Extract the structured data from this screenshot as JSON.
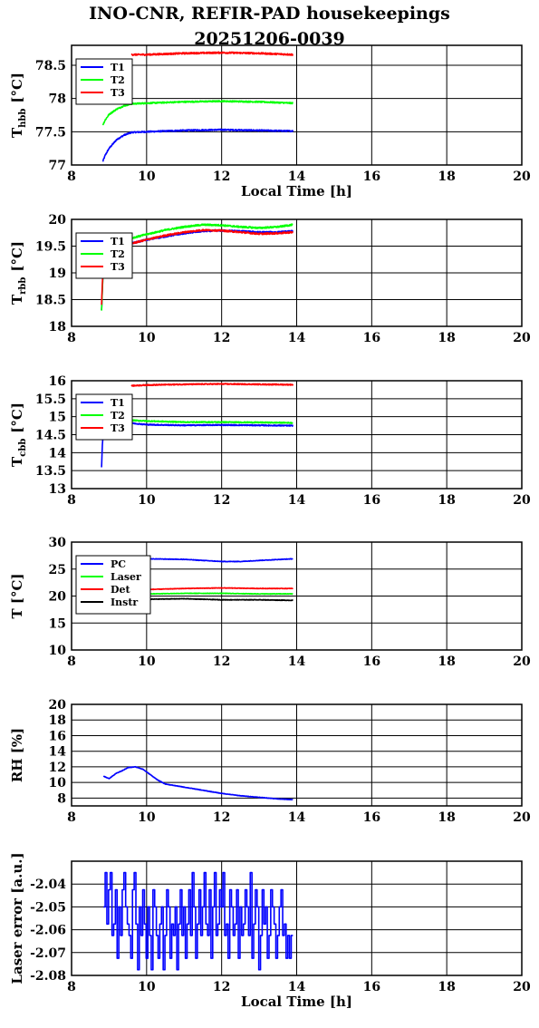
{
  "title_line1": "INO-CNR, REFIR-PAD housekeepings",
  "title_line2": "20251206-0039",
  "colors": {
    "blue": "#0000ff",
    "green": "#00ff00",
    "red": "#ff0000",
    "black": "#000000"
  },
  "chart_data": [
    {
      "type": "line",
      "ylabel": "T",
      "ylabel_sub": "hbb",
      "ylabel_unit": "[°C]",
      "xlabel": "Local Time [h]",
      "xlim": [
        8,
        20
      ],
      "ylim": [
        77,
        78.8
      ],
      "xticks": [
        "8",
        "10",
        "12",
        "14",
        "16",
        "18",
        "20"
      ],
      "yticks": [
        "77",
        "77.5",
        "78",
        "78.5"
      ],
      "ytick_values": [
        77,
        77.5,
        78,
        78.5
      ],
      "grid": true,
      "legend": "top-left",
      "series": [
        {
          "name": "T1",
          "color": "#0000ff",
          "noise": 0.01,
          "x": [
            8.83,
            8.9,
            9.0,
            9.2,
            9.4,
            9.6,
            10.0,
            11.0,
            12.0,
            13.0,
            13.9
          ],
          "y": [
            77.05,
            77.15,
            77.25,
            77.38,
            77.45,
            77.49,
            77.5,
            77.52,
            77.53,
            77.52,
            77.51
          ]
        },
        {
          "name": "T2",
          "color": "#00ff00",
          "noise": 0.01,
          "x": [
            8.83,
            8.9,
            9.0,
            9.2,
            9.4,
            9.6,
            10.0,
            11.0,
            12.0,
            13.0,
            13.9
          ],
          "y": [
            77.6,
            77.68,
            77.76,
            77.84,
            77.89,
            77.92,
            77.93,
            77.95,
            77.96,
            77.95,
            77.93
          ]
        },
        {
          "name": "T3",
          "color": "#ff0000",
          "noise": 0.012,
          "x": [
            9.6,
            10.0,
            11.0,
            12.0,
            13.0,
            13.9
          ],
          "y": [
            78.66,
            78.66,
            78.68,
            78.69,
            78.68,
            78.66
          ]
        }
      ]
    },
    {
      "type": "line",
      "ylabel": "T",
      "ylabel_sub": "rbb",
      "ylabel_unit": "[°C]",
      "xlabel": "",
      "xlim": [
        8,
        20
      ],
      "ylim": [
        18,
        20
      ],
      "xticks": [
        "8",
        "10",
        "12",
        "14",
        "16",
        "18",
        "20"
      ],
      "yticks": [
        "18",
        "18.5",
        "19",
        "19.5",
        "20"
      ],
      "ytick_values": [
        18,
        18.5,
        19,
        19.5,
        20
      ],
      "grid": true,
      "legend": "top-left",
      "series": [
        {
          "name": "T1",
          "color": "#0000ff",
          "noise": 0.015,
          "x": [
            8.8,
            8.82,
            8.84,
            9.6,
            10.0,
            10.5,
            11.0,
            11.5,
            12.0,
            12.5,
            13.0,
            13.5,
            13.9
          ],
          "y": [
            18.3,
            18.7,
            19.0,
            19.55,
            19.62,
            19.68,
            19.74,
            19.78,
            19.79,
            19.78,
            19.76,
            19.76,
            19.78
          ]
        },
        {
          "name": "T2",
          "color": "#00ff00",
          "noise": 0.015,
          "x": [
            8.8,
            8.82,
            8.84,
            9.6,
            10.0,
            10.5,
            11.0,
            11.5,
            12.0,
            12.5,
            13.0,
            13.5,
            13.9
          ],
          "y": [
            18.28,
            18.68,
            19.0,
            19.65,
            19.72,
            19.8,
            19.86,
            19.9,
            19.89,
            19.86,
            19.84,
            19.86,
            19.9
          ]
        },
        {
          "name": "T3",
          "color": "#ff0000",
          "noise": 0.015,
          "x": [
            8.8,
            8.82,
            8.84,
            9.6,
            10.0,
            10.5,
            11.0,
            11.5,
            12.0,
            12.5,
            13.0,
            13.5,
            13.9
          ],
          "y": [
            18.4,
            18.8,
            19.02,
            19.55,
            19.62,
            19.7,
            19.76,
            19.8,
            19.79,
            19.76,
            19.73,
            19.74,
            19.76
          ]
        }
      ]
    },
    {
      "type": "line",
      "ylabel": "T",
      "ylabel_sub": "cbb",
      "ylabel_unit": "[°C]",
      "xlabel": "",
      "xlim": [
        8,
        20
      ],
      "ylim": [
        13,
        16
      ],
      "xticks": [
        "8",
        "10",
        "12",
        "14",
        "16",
        "18",
        "20"
      ],
      "yticks": [
        "13",
        "13.5",
        "14",
        "14.5",
        "15",
        "15.5",
        "16"
      ],
      "ytick_values": [
        13,
        13.5,
        14,
        14.5,
        15,
        15.5,
        16
      ],
      "grid": true,
      "legend": "top-left",
      "series": [
        {
          "name": "T1",
          "color": "#0000ff",
          "noise": 0.015,
          "x": [
            8.8,
            8.82,
            8.85,
            9.6,
            10.0,
            11.0,
            12.0,
            13.0,
            13.9
          ],
          "y": [
            13.6,
            14.2,
            14.6,
            14.82,
            14.78,
            14.76,
            14.77,
            14.76,
            14.75
          ]
        },
        {
          "name": "T2",
          "color": "#00ff00",
          "noise": 0.015,
          "x": [
            9.6,
            10.0,
            11.0,
            12.0,
            13.0,
            13.9
          ],
          "y": [
            14.9,
            14.88,
            14.85,
            14.85,
            14.84,
            14.83
          ]
        },
        {
          "name": "T3",
          "color": "#ff0000",
          "noise": 0.015,
          "x": [
            9.6,
            10.0,
            11.0,
            12.0,
            13.0,
            13.9
          ],
          "y": [
            15.86,
            15.88,
            15.9,
            15.91,
            15.9,
            15.89
          ]
        }
      ]
    },
    {
      "type": "line",
      "ylabel": "T [°C]",
      "ylabel_sub": "",
      "ylabel_unit": "",
      "xlabel": "",
      "xlim": [
        8,
        20
      ],
      "ylim": [
        10,
        30
      ],
      "xticks": [
        "8",
        "10",
        "12",
        "14",
        "16",
        "18",
        "20"
      ],
      "yticks": [
        "10",
        "15",
        "20",
        "25",
        "30"
      ],
      "ytick_values": [
        10,
        15,
        20,
        25,
        30
      ],
      "grid": true,
      "legend": "top-left",
      "series": [
        {
          "name": "PC",
          "color": "#0000ff",
          "noise": 0.05,
          "x": [
            9.5,
            10.0,
            11.0,
            12.0,
            12.5,
            13.0,
            13.9
          ],
          "y": [
            26.8,
            26.9,
            26.8,
            26.4,
            26.4,
            26.6,
            26.9
          ]
        },
        {
          "name": "Laser",
          "color": "#00ff00",
          "noise": 0.05,
          "x": [
            9.5,
            10.0,
            11.0,
            12.0,
            13.0,
            13.9
          ],
          "y": [
            20.4,
            20.4,
            20.5,
            20.5,
            20.4,
            20.4
          ]
        },
        {
          "name": "Det",
          "color": "#ff0000",
          "noise": 0.05,
          "x": [
            9.5,
            10.0,
            11.0,
            12.0,
            13.0,
            13.9
          ],
          "y": [
            21.2,
            21.2,
            21.4,
            21.5,
            21.4,
            21.4
          ]
        },
        {
          "name": "Instr",
          "color": "#000000",
          "noise": 0.05,
          "x": [
            9.5,
            10.0,
            11.0,
            12.0,
            13.0,
            13.9
          ],
          "y": [
            19.3,
            19.4,
            19.5,
            19.3,
            19.3,
            19.2
          ]
        }
      ]
    },
    {
      "type": "line",
      "ylabel": "RH [%]",
      "ylabel_sub": "",
      "ylabel_unit": "",
      "xlabel": "",
      "xlim": [
        8,
        20
      ],
      "ylim": [
        7,
        20
      ],
      "xticks": [
        "8",
        "10",
        "12",
        "14",
        "16",
        "18",
        "20"
      ],
      "yticks": [
        "8",
        "10",
        "12",
        "14",
        "16",
        "18",
        "20"
      ],
      "ytick_values": [
        8,
        10,
        12,
        14,
        16,
        18,
        20
      ],
      "grid": true,
      "legend": "none",
      "series": [
        {
          "color": "#0000ff",
          "noise": 0.03,
          "x": [
            8.85,
            9.0,
            9.2,
            9.35,
            9.5,
            9.7,
            9.9,
            10.1,
            10.3,
            10.5,
            11.0,
            11.5,
            12.0,
            12.5,
            13.0,
            13.5,
            13.9
          ],
          "y": [
            10.8,
            10.5,
            11.2,
            11.5,
            11.9,
            12.0,
            11.7,
            11.0,
            10.3,
            9.8,
            9.4,
            9.0,
            8.6,
            8.3,
            8.1,
            7.9,
            7.8
          ]
        }
      ]
    },
    {
      "type": "line",
      "ylabel": "Laser error [a.u.]",
      "ylabel_sub": "",
      "ylabel_unit": "",
      "xlabel": "Local Time [h]",
      "xlim": [
        8,
        20
      ],
      "ylim": [
        -2.08,
        -2.03
      ],
      "xticks": [
        "8",
        "10",
        "12",
        "14",
        "16",
        "18",
        "20"
      ],
      "yticks": [
        "-2.08",
        "-2.07",
        "-2.06",
        "-2.05",
        "-2.04"
      ],
      "ytick_values": [
        -2.08,
        -2.07,
        -2.06,
        -2.05,
        -2.04
      ],
      "grid": true,
      "legend": "none",
      "series": [
        {
          "color": "#0000ff",
          "x_start": 8.85,
          "x_end": 13.9,
          "levels": [
            -2.035,
            -2.0425,
            -2.05,
            -2.0575,
            -2.0625,
            -2.0725,
            -2.0775
          ],
          "y": [
            -2.05,
            -2.035,
            -2.0575,
            -2.0425,
            -2.035,
            -2.0625,
            -2.0575,
            -2.0425,
            -2.0725,
            -2.05,
            -2.0625,
            -2.0425,
            -2.035,
            -2.05,
            -2.0575,
            -2.0625,
            -2.0725,
            -2.0425,
            -2.035,
            -2.0575,
            -2.0775,
            -2.05,
            -2.0625,
            -2.0425,
            -2.0575,
            -2.0725,
            -2.05,
            -2.0625,
            -2.0775,
            -2.0425,
            -2.05,
            -2.0625,
            -2.0725,
            -2.0575,
            -2.05,
            -2.0775,
            -2.0625,
            -2.0425,
            -2.05,
            -2.0725,
            -2.0575,
            -2.0625,
            -2.05,
            -2.0775,
            -2.0575,
            -2.0425,
            -2.0625,
            -2.05,
            -2.0725,
            -2.0575,
            -2.0425,
            -2.0625,
            -2.035,
            -2.05,
            -2.0725,
            -2.0575,
            -2.0425,
            -2.0625,
            -2.05,
            -2.035,
            -2.0575,
            -2.0625,
            -2.0425,
            -2.0725,
            -2.05,
            -2.035,
            -2.0625,
            -2.0575,
            -2.0425,
            -2.05,
            -2.035,
            -2.0625,
            -2.0575,
            -2.0725,
            -2.0425,
            -2.05,
            -2.0625,
            -2.0575,
            -2.0425,
            -2.0725,
            -2.05,
            -2.0625,
            -2.0575,
            -2.0425,
            -2.05,
            -2.0625,
            -2.035,
            -2.0725,
            -2.0575,
            -2.0425,
            -2.05,
            -2.0775,
            -2.0625,
            -2.0425,
            -2.0575,
            -2.05,
            -2.0725,
            -2.0625,
            -2.0425,
            -2.05,
            -2.0575,
            -2.0725,
            -2.0625,
            -2.05,
            -2.0425,
            -2.0625,
            -2.0575,
            -2.0725,
            -2.0625,
            -2.0725,
            -2.0625
          ]
        }
      ]
    }
  ]
}
